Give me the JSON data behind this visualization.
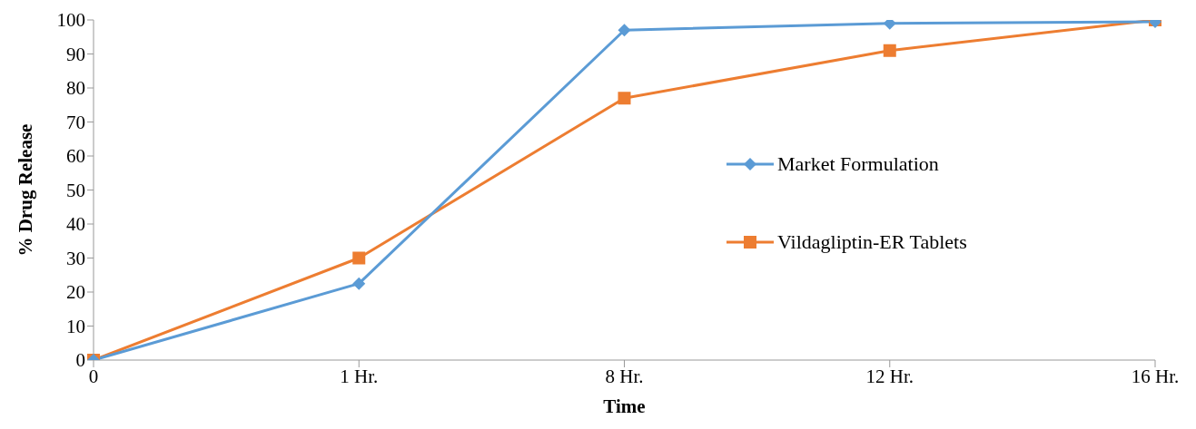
{
  "chart_data": {
    "type": "line",
    "xlabel": "Time",
    "ylabel": "% Drug Release",
    "categories": [
      "0",
      "1 Hr.",
      "8 Hr.",
      "12 Hr.",
      "16 Hr."
    ],
    "series": [
      {
        "name": "Market Formulation",
        "color": "#5b9bd5",
        "marker": "diamond",
        "values": [
          0,
          22.5,
          97,
          99,
          99.5
        ]
      },
      {
        "name": "Vildagliptin-ER Tablets",
        "color": "#ed7d31",
        "marker": "square",
        "values": [
          0,
          30,
          77,
          91,
          100
        ]
      }
    ],
    "ylim": [
      0,
      100
    ],
    "yticks": [
      0,
      10,
      20,
      30,
      40,
      50,
      60,
      70,
      80,
      90,
      100
    ],
    "grid": false,
    "legend": "right",
    "line_style": "solid"
  }
}
